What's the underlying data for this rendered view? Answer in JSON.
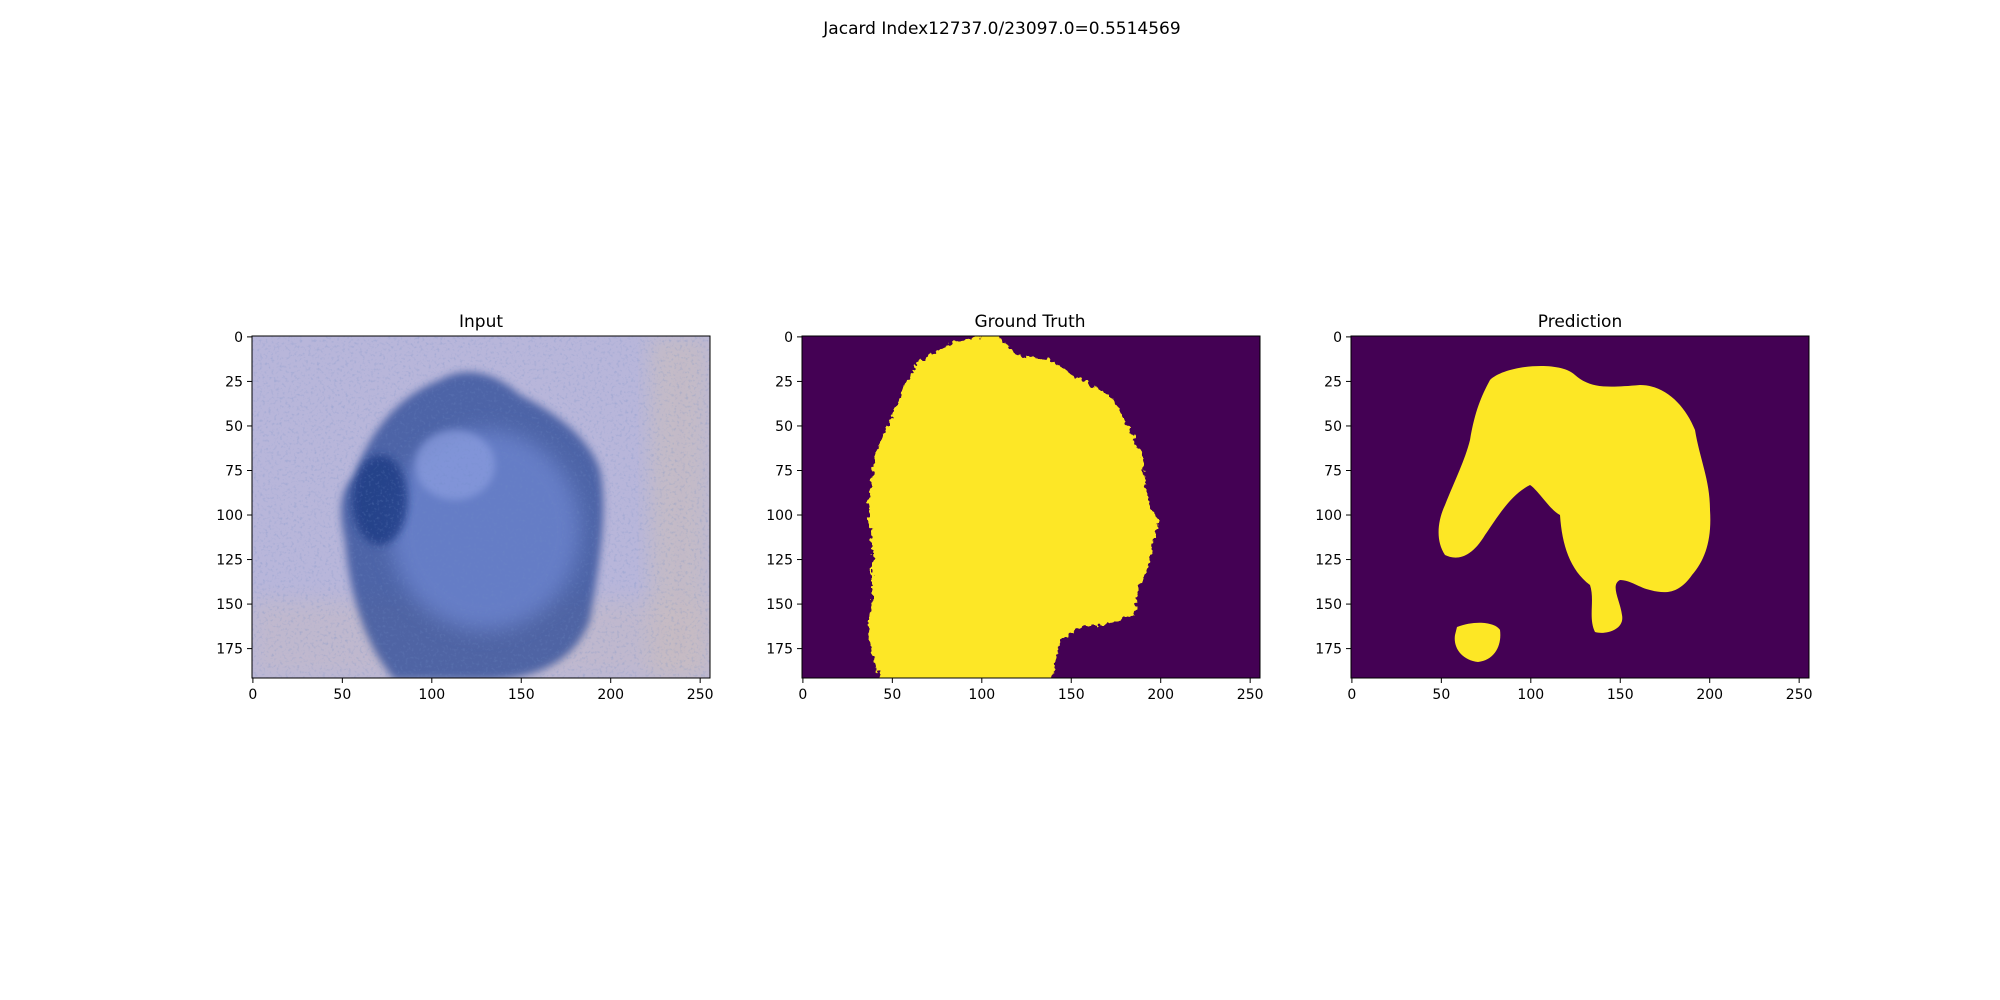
{
  "figure": {
    "suptitle": "Jacard Index12737.0/23097.0=0.5514569"
  },
  "panels": [
    {
      "title": "Input"
    },
    {
      "title": "Ground Truth"
    },
    {
      "title": "Prediction"
    }
  ],
  "axes": {
    "x_ticks": [
      "0",
      "50",
      "100",
      "150",
      "200",
      "250"
    ],
    "y_ticks": [
      "0",
      "25",
      "50",
      "75",
      "100",
      "125",
      "150",
      "175"
    ]
  },
  "colors": {
    "mask_background": "#440154",
    "mask_foreground": "#fde725",
    "skin_base": "#b8b6da",
    "lesion_dark": "#2c4a96",
    "lesion_mid": "#6b82cc"
  }
}
